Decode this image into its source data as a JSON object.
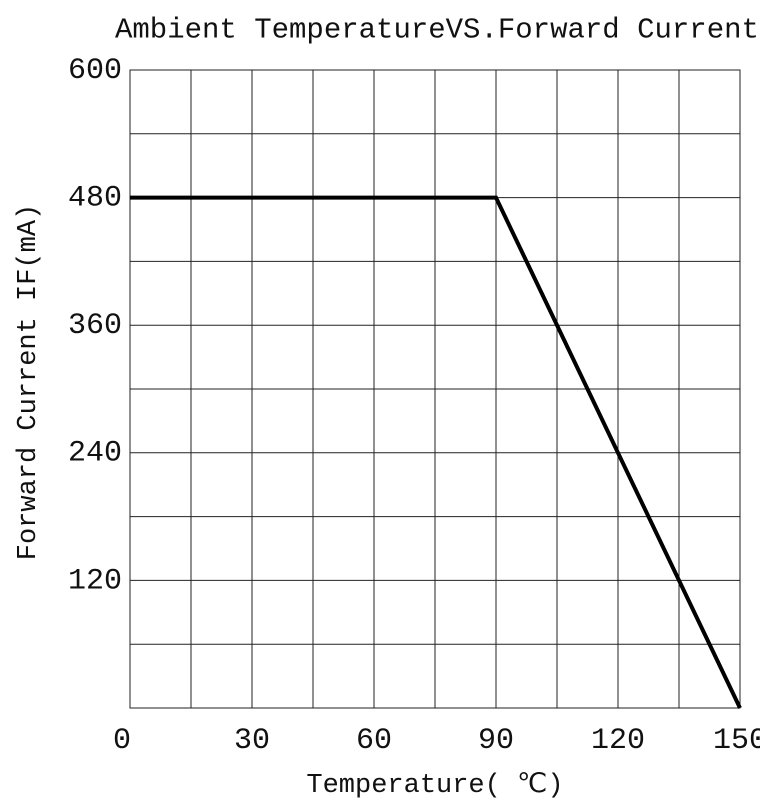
{
  "chart_data": {
    "type": "line",
    "title": "Ambient TemperatureVS.Forward Current",
    "x_label": "Temperature( ℃)",
    "y_label": "Forward Current IF(mA)",
    "x": [
      0,
      90,
      150
    ],
    "series": [
      {
        "name": "IF",
        "color": "#000000",
        "values": [
          480,
          480,
          0
        ]
      }
    ],
    "xlim": [
      0,
      150
    ],
    "xticks": [
      0,
      30,
      60,
      90,
      120,
      150
    ],
    "xminor": [
      15,
      45,
      75,
      105,
      135
    ],
    "ylim": [
      0,
      600
    ],
    "yticks": [
      120,
      240,
      360,
      480,
      600
    ],
    "yminor": [
      60,
      180,
      300,
      420,
      540
    ],
    "grid": true
  }
}
